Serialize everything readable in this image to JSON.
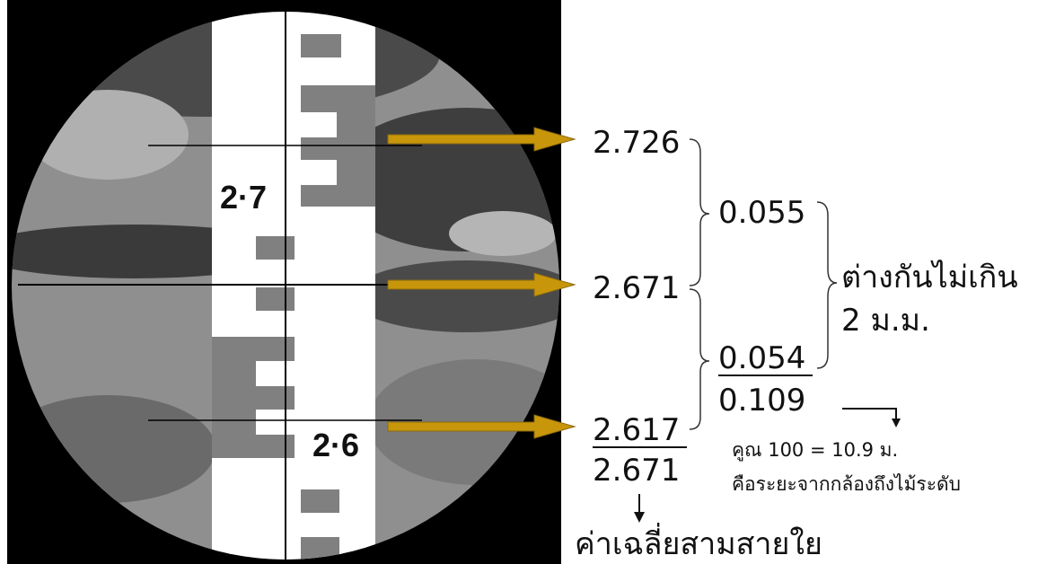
{
  "rod_labels": [
    "2·7",
    "2·6"
  ],
  "readings": {
    "top": "2.726",
    "middle": "2.671",
    "bottom": "2.617",
    "average": "2.671"
  },
  "differences": {
    "upper": "0.055",
    "lower": "0.054",
    "total": "0.109"
  },
  "tolerance": [
    "ต่างกันไม่เกิน",
    "2 ม.ม."
  ],
  "distance_note": [
    "คูณ 100 = 10.9 ม.",
    "คือระยะจากกล้องถึงไม้ระดับ"
  ],
  "average_note": "ค่าเฉลี่ยสามสายใย"
}
